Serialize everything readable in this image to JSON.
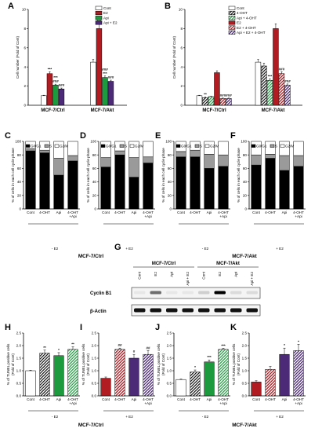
{
  "colors": {
    "cont": "#ffffff",
    "e2": "#b01c22",
    "api": "#1e9a3e",
    "apie2": "#4d2a78",
    "ohtBlack": "#000000",
    "g0": "#000000",
    "s": "#9a9a9a",
    "g2": "#ffffff"
  },
  "patterns": {
    "ohtHatch": "hatch-black",
    "apiOht": "hatch-green",
    "apiE2Oht": "hatch-purple",
    "e2Oht": "hatch-red"
  },
  "chart_data": [
    {
      "panel": "A",
      "type": "bar",
      "ylabel": "Cell number (Fold of Cont)",
      "ylim": [
        0,
        10
      ],
      "yticks": [
        0,
        2,
        4,
        6,
        8,
        10
      ],
      "groups": [
        "MCF-7/Ctrl",
        "MCF-7/Akt"
      ],
      "legend": [
        "Cont",
        "E2",
        "Api",
        "Api + E2"
      ],
      "series": [
        {
          "name": "Cont",
          "fill": "cont",
          "values": [
            1.0,
            4.5
          ],
          "err": [
            0.05,
            0.3
          ],
          "sig": [
            "",
            ""
          ]
        },
        {
          "name": "E2",
          "fill": "e2",
          "values": [
            3.3,
            8.0
          ],
          "err": [
            0.2,
            0.5
          ],
          "sig": [
            "***",
            "***"
          ]
        },
        {
          "name": "Api",
          "fill": "api",
          "values": [
            2.1,
            2.9
          ],
          "err": [
            0.1,
            0.15
          ],
          "sig": [
            "***\n###",
            "###\n***"
          ]
        },
        {
          "name": "Api + E2",
          "fill": "apie2",
          "values": [
            1.7,
            2.5
          ],
          "err": [
            0.1,
            0.12
          ],
          "sig": [
            "###",
            "###"
          ]
        }
      ]
    },
    {
      "panel": "B",
      "type": "bar",
      "ylabel": "Cell number (Fold of Cont)",
      "ylim": [
        0,
        10
      ],
      "yticks": [
        0,
        2,
        4,
        6,
        8,
        10
      ],
      "groups": [
        "MCF-7/Ctrl",
        "MCF-7/Akt"
      ],
      "legend": [
        "Cont",
        "4-OHT",
        "Api + 4-OHT",
        "E2",
        "E2 + 4-OHT",
        "Api + E2 + 4-OHT"
      ],
      "series": [
        {
          "name": "Cont",
          "fill": "cont",
          "values": [
            1.0,
            4.5
          ],
          "err": [
            0.05,
            0.3
          ],
          "sig": [
            "",
            ""
          ]
        },
        {
          "name": "4-OHT",
          "fill": "ohtHatch",
          "values": [
            0.8,
            4.1
          ],
          "err": [
            0.05,
            0.3
          ],
          "sig": [
            "**",
            ""
          ]
        },
        {
          "name": "Api + 4-OHT",
          "fill": "apiOht",
          "values": [
            0.9,
            2.6
          ],
          "err": [
            0.05,
            0.15
          ],
          "sig": [
            "",
            "***"
          ]
        },
        {
          "name": "E2",
          "fill": "e2",
          "values": [
            3.4,
            8.0
          ],
          "err": [
            0.2,
            0.5
          ],
          "sig": [
            "",
            ""
          ]
        },
        {
          "name": "E2 + 4-OHT",
          "fill": "e2Oht",
          "values": [
            0.7,
            3.3
          ],
          "err": [
            0.05,
            0.2
          ],
          "sig": [
            "###",
            "###"
          ]
        },
        {
          "name": "Api + E2 + 4-OHT",
          "fill": "apiE2Oht",
          "values": [
            0.7,
            2.1
          ],
          "err": [
            0.05,
            0.12
          ],
          "sig": [
            "###",
            "###"
          ]
        }
      ]
    },
    {
      "panel": "C",
      "type": "bar",
      "stacked": true,
      "ylabel": "% of cells in each cell cycle phase",
      "ylim": [
        0,
        100
      ],
      "yticks": [
        0,
        20,
        40,
        60,
        80,
        100
      ],
      "legend": [
        "G0/G1",
        "S",
        "G2/M"
      ],
      "categories": [
        "Cont",
        "4-OHT",
        "Api",
        "4-OHT\n+Api"
      ],
      "g0": [
        86,
        83,
        50,
        71
      ],
      "s": [
        3,
        4,
        25,
        8
      ]
    },
    {
      "panel": "D",
      "type": "bar",
      "stacked": true,
      "ylabel": "% of cells in each cell cycle phase",
      "ylim": [
        0,
        100
      ],
      "yticks": [
        0,
        20,
        40,
        60,
        80,
        100
      ],
      "legend": [
        "G0/G1",
        "S",
        "G2/M"
      ],
      "categories": [
        "Cont",
        "4-OHT",
        "Api",
        "4-OHT\n+Api"
      ],
      "g0": [
        62,
        80,
        47,
        68
      ],
      "s": [
        14,
        6,
        29,
        9
      ]
    },
    {
      "panel": "E",
      "type": "bar",
      "stacked": true,
      "ylabel": "% of cells in each cell cycle phase",
      "ylim": [
        0,
        100
      ],
      "yticks": [
        0,
        20,
        40,
        60,
        80,
        100
      ],
      "legend": [
        "G0/G1",
        "S",
        "G2/M"
      ],
      "categories": [
        "Cont",
        "4-OHT",
        "Api",
        "4-OHT\n+Api"
      ],
      "g0": [
        77,
        77,
        60,
        63
      ],
      "s": [
        8,
        10,
        21,
        17
      ]
    },
    {
      "panel": "F",
      "type": "bar",
      "stacked": true,
      "ylabel": "% of cells in each cell cycle phase",
      "ylim": [
        0,
        100
      ],
      "yticks": [
        0,
        20,
        40,
        60,
        80,
        100
      ],
      "legend": [
        "G0/G1",
        "S",
        "G2/M"
      ],
      "categories": [
        "Cont",
        "4-OHT",
        "Api",
        "4-OHT\n+Api"
      ],
      "g0": [
        65,
        75,
        57,
        63
      ],
      "s": [
        15,
        6,
        22,
        16
      ]
    },
    {
      "panel": "H",
      "type": "bar",
      "ylabel": "% of TUNEL positive cells (Fold of Cont)",
      "ylim": [
        0,
        2.5
      ],
      "yticks": [
        0,
        0.5,
        1.0,
        1.5,
        2.0,
        2.5
      ],
      "categories": [
        "Cont",
        "4-OHT",
        "Api",
        "4-OHT\n+Api"
      ],
      "fills": [
        "cont",
        "ohtHatch",
        "api",
        "apiOht"
      ],
      "values": [
        1.0,
        1.7,
        1.6,
        1.85
      ],
      "err": [
        0.02,
        0.12,
        0.12,
        0.1
      ],
      "sig": [
        "",
        "**",
        "*",
        "**"
      ]
    },
    {
      "panel": "I",
      "type": "bar",
      "ylabel": "% of TUNEL positive cells (Fold of Cont)",
      "ylim": [
        0,
        2.5
      ],
      "yticks": [
        0,
        0.5,
        1.0,
        1.5,
        2.0,
        2.5
      ],
      "categories": [
        "Cont",
        "4-OHT",
        "Api",
        "4-OHT\n+Api"
      ],
      "fills": [
        "e2",
        "e2Oht",
        "apie2",
        "apiE2Oht"
      ],
      "values": [
        0.7,
        1.85,
        1.5,
        1.65
      ],
      "err": [
        0.05,
        0.05,
        0.15,
        0.15
      ],
      "sig": [
        "",
        "##",
        "#",
        "##"
      ]
    },
    {
      "panel": "J",
      "type": "bar",
      "ylabel": "% of TUNEL positive cells (Fold of Cont)",
      "ylim": [
        0,
        2.5
      ],
      "yticks": [
        0,
        0.5,
        1.0,
        1.5,
        2.0,
        2.5
      ],
      "categories": [
        "Cont",
        "4-OHT",
        "Api",
        "4-OHT\n+Api"
      ],
      "fills": [
        "cont",
        "ohtHatch",
        "api",
        "apiOht"
      ],
      "values": [
        0.65,
        0.95,
        1.35,
        1.85
      ],
      "err": [
        0.02,
        0.08,
        0.08,
        0.04
      ],
      "sig": [
        "",
        "*",
        "***",
        "***"
      ]
    },
    {
      "panel": "K",
      "type": "bar",
      "ylabel": "% of TUNEL positive cells (Fold of Cont)",
      "ylim": [
        0,
        2.5
      ],
      "yticks": [
        0,
        0.5,
        1.0,
        1.5,
        2.0,
        2.5
      ],
      "categories": [
        "Cont",
        "4-OHT",
        "Api",
        "4-OHT\n+Api"
      ],
      "fills": [
        "e2",
        "e2Oht",
        "apie2",
        "apiE2Oht"
      ],
      "values": [
        0.55,
        1.05,
        1.65,
        1.8
      ],
      "err": [
        0.05,
        0.12,
        0.25,
        0.25
      ],
      "sig": [
        "",
        "",
        "*",
        "*"
      ]
    }
  ],
  "row2": {
    "c_sub": "- E2",
    "d_sub": "+ E2",
    "e_sub": "- E2",
    "f_sub": "+ E2",
    "left_group": "MCF-7/Ctrl",
    "right_group": "MCF-7/Akt"
  },
  "row4": {
    "h_sub": "- E2",
    "i_sub": "+ E2",
    "j_sub": "- E2",
    "k_sub": "+ E2",
    "left_group": "MCF-7/Ctrl",
    "right_group": "MCF-7/Akt"
  },
  "western": {
    "panel": "G",
    "groups": [
      "MCF-7/Ctrl",
      "MCF-7/Akt"
    ],
    "lanes": [
      "Cont",
      "E2",
      "Api",
      "Api + E2",
      "Cont",
      "E2",
      "Api",
      "Api + E2"
    ],
    "bands": [
      "Cyclin B1",
      "β-Actin"
    ],
    "cyclin_intensity": [
      0.05,
      0.55,
      0.05,
      0.05,
      0.15,
      1.0,
      0.1,
      0.1
    ]
  }
}
